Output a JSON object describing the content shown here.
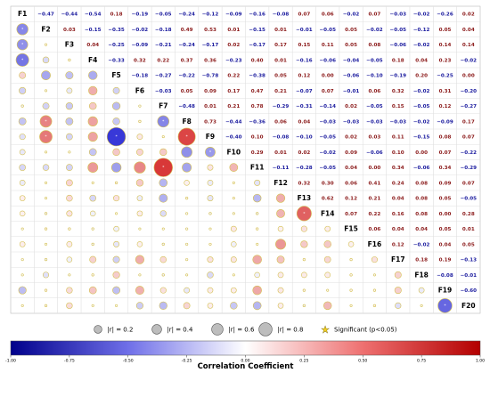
{
  "chart_data": {
    "type": "heatmap",
    "variables": [
      "F1",
      "F2",
      "F3",
      "F4",
      "F5",
      "F6",
      "F7",
      "F8",
      "F9",
      "F10",
      "F11",
      "F12",
      "F13",
      "F14",
      "F15",
      "F16",
      "F17",
      "F18",
      "F19",
      "F20"
    ],
    "matrix": [
      [
        1.0,
        -0.47,
        -0.44,
        -0.54,
        0.18,
        -0.19,
        -0.05,
        -0.24,
        -0.12,
        -0.09,
        -0.16,
        -0.08,
        0.07,
        0.06,
        -0.02,
        0.07,
        -0.03,
        -0.02,
        -0.26,
        0.02
      ],
      [
        -0.47,
        1.0,
        0.03,
        -0.15,
        -0.35,
        -0.02,
        -0.18,
        0.49,
        0.53,
        0.01,
        -0.15,
        0.01,
        -0.01,
        -0.05,
        0.05,
        -0.02,
        -0.05,
        -0.12,
        0.05,
        0.04
      ],
      [
        -0.44,
        0.03,
        1.0,
        0.04,
        -0.25,
        -0.09,
        -0.21,
        -0.24,
        -0.17,
        0.02,
        -0.17,
        0.17,
        0.15,
        0.11,
        0.05,
        0.08,
        -0.06,
        -0.02,
        0.14,
        0.14
      ],
      [
        -0.54,
        -0.15,
        0.04,
        1.0,
        -0.33,
        0.32,
        0.22,
        0.37,
        0.36,
        -0.23,
        0.4,
        0.01,
        -0.16,
        -0.06,
        -0.04,
        -0.05,
        0.18,
        0.04,
        0.23,
        -0.02
      ],
      [
        0.18,
        -0.35,
        -0.25,
        -0.33,
        1.0,
        -0.18,
        -0.27,
        -0.22,
        -0.78,
        0.22,
        -0.38,
        0.05,
        0.12,
        -0.0,
        -0.06,
        -0.1,
        -0.19,
        0.2,
        -0.25,
        0.0
      ],
      [
        -0.19,
        -0.02,
        -0.09,
        0.32,
        -0.18,
        1.0,
        -0.03,
        0.05,
        0.09,
        0.17,
        0.47,
        0.21,
        -0.07,
        0.07,
        -0.01,
        0.06,
        0.32,
        -0.02,
        0.31,
        -0.2
      ],
      [
        -0.05,
        -0.18,
        -0.21,
        0.22,
        -0.27,
        -0.03,
        1.0,
        -0.48,
        0.01,
        0.21,
        0.78,
        -0.29,
        -0.31,
        -0.14,
        0.02,
        -0.05,
        0.15,
        -0.05,
        0.12,
        -0.27
      ],
      [
        -0.24,
        0.49,
        -0.24,
        0.37,
        -0.22,
        0.05,
        -0.48,
        1.0,
        0.73,
        -0.44,
        -0.36,
        0.06,
        0.04,
        -0.03,
        -0.03,
        -0.03,
        -0.03,
        -0.02,
        -0.09,
        0.17
      ],
      [
        -0.12,
        0.53,
        -0.17,
        0.36,
        -0.78,
        0.09,
        0.01,
        0.73,
        1.0,
        -0.4,
        0.1,
        -0.08,
        -0.1,
        -0.05,
        0.02,
        0.03,
        0.11,
        -0.15,
        0.08,
        0.07
      ],
      [
        -0.09,
        0.01,
        0.02,
        -0.23,
        0.22,
        0.17,
        0.21,
        -0.44,
        -0.4,
        1.0,
        0.29,
        0.01,
        0.02,
        -0.02,
        0.09,
        -0.06,
        0.1,
        0.0,
        0.07,
        -0.22
      ],
      [
        -0.16,
        -0.15,
        -0.17,
        0.4,
        -0.38,
        0.47,
        0.78,
        -0.36,
        0.1,
        0.29,
        1.0,
        -0.11,
        -0.28,
        -0.05,
        0.04,
        -0.0,
        0.34,
        -0.06,
        0.34,
        -0.29
      ],
      [
        -0.08,
        0.01,
        0.17,
        0.01,
        0.05,
        0.21,
        -0.29,
        0.06,
        -0.08,
        0.01,
        -0.11,
        1.0,
        0.32,
        0.3,
        0.06,
        0.41,
        0.24,
        0.08,
        0.09,
        0.07
      ],
      [
        0.07,
        -0.01,
        0.15,
        -0.16,
        0.12,
        -0.07,
        -0.31,
        0.04,
        -0.1,
        0.02,
        -0.28,
        0.32,
        1.0,
        0.62,
        0.12,
        0.21,
        0.04,
        0.08,
        0.05,
        -0.05
      ],
      [
        0.06,
        -0.05,
        0.11,
        -0.06,
        -0.0,
        0.07,
        -0.14,
        -0.03,
        -0.05,
        -0.02,
        -0.05,
        0.3,
        0.62,
        1.0,
        0.07,
        0.22,
        0.16,
        0.08,
        0.0,
        0.28
      ],
      [
        -0.02,
        0.05,
        0.05,
        -0.04,
        -0.06,
        -0.01,
        0.02,
        -0.03,
        0.02,
        0.09,
        0.04,
        0.06,
        0.12,
        0.07,
        1.0,
        0.06,
        0.04,
        0.04,
        0.05,
        0.01
      ],
      [
        0.07,
        -0.02,
        0.08,
        -0.05,
        -0.1,
        0.06,
        -0.05,
        -0.03,
        0.03,
        -0.06,
        -0.0,
        0.41,
        0.21,
        0.22,
        0.06,
        1.0,
        0.12,
        -0.02,
        0.04,
        0.05
      ],
      [
        -0.03,
        -0.05,
        -0.06,
        0.18,
        -0.19,
        0.32,
        0.15,
        -0.03,
        0.11,
        0.1,
        0.34,
        0.24,
        0.04,
        0.16,
        0.04,
        0.12,
        1.0,
        0.18,
        0.19,
        -0.13
      ],
      [
        -0.02,
        -0.12,
        -0.02,
        0.04,
        0.2,
        -0.02,
        -0.05,
        -0.02,
        -0.15,
        0.0,
        -0.06,
        0.08,
        0.08,
        0.08,
        0.04,
        -0.02,
        0.18,
        1.0,
        -0.08,
        -0.01
      ],
      [
        -0.26,
        0.05,
        0.14,
        0.23,
        -0.25,
        0.31,
        0.12,
        -0.09,
        0.08,
        0.07,
        0.34,
        0.09,
        0.05,
        0.0,
        0.05,
        0.04,
        0.19,
        -0.08,
        1.0,
        -0.6
      ],
      [
        0.02,
        0.04,
        0.14,
        -0.02,
        0.0,
        -0.2,
        -0.27,
        0.17,
        0.07,
        -0.22,
        -0.29,
        0.07,
        -0.05,
        0.28,
        0.01,
        0.05,
        -0.13,
        -0.01,
        -0.6,
        1.0
      ]
    ],
    "significant": [
      [
        1,
        0
      ],
      [
        2,
        0
      ],
      [
        3,
        0
      ],
      [
        7,
        1
      ],
      [
        8,
        1
      ],
      [
        8,
        4
      ],
      [
        7,
        6
      ],
      [
        8,
        7
      ],
      [
        9,
        8
      ],
      [
        10,
        6
      ],
      [
        13,
        12
      ],
      [
        19,
        18
      ]
    ],
    "upper_triangle": "numeric values",
    "lower_triangle": "circles sized by |r|, colored by r",
    "size_legend": [
      {
        "r": 0.2,
        "label": "|r| = 0.2"
      },
      {
        "r": 0.4,
        "label": "|r| = 0.4"
      },
      {
        "r": 0.6,
        "label": "|r| = 0.6"
      },
      {
        "r": 0.8,
        "label": "|r| = 0.8"
      }
    ],
    "significance_label": "Significant (p<0.05)",
    "colorbar": {
      "title": "Correlation Coefficient",
      "range": [
        -1.0,
        1.0
      ],
      "ticks": [
        -1.0,
        -0.75,
        -0.5,
        -0.25,
        0.0,
        0.25,
        0.5,
        0.75,
        1.0
      ],
      "tick_labels": [
        "-1.00",
        "-0.75",
        "-0.50",
        "-0.25",
        "0.00",
        "0.25",
        "0.50",
        "0.75",
        "1.00"
      ],
      "colors": {
        "negative": "#0a0ad0",
        "zero": "#ffffff",
        "positive": "#d00a0a"
      }
    },
    "grid": true,
    "text_colors": {
      "negative": "#1a1a9e",
      "positive": "#8b1a1a"
    }
  }
}
